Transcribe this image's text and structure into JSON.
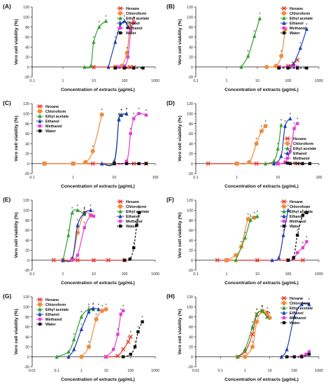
{
  "panel_series_names": [
    "Hexane",
    "Chloroform",
    "Ethyl acetate",
    "Ethanol",
    "Methanol",
    "Water"
  ],
  "series_colors": [
    "#e8392a",
    "#f08c3c",
    "#2fa02c",
    "#1f3bb3",
    "#e23fd6",
    "#111111"
  ],
  "series_markers": [
    "cross",
    "circle",
    "triangle",
    "triangle",
    "square",
    "square"
  ],
  "chart_data": [
    {
      "type": "line",
      "panel": "(A)",
      "xscale": "log",
      "xlim": [
        0.1,
        1000
      ],
      "ylim": [
        -20,
        120
      ],
      "xticks": [
        "0.1",
        "1",
        "10",
        "100",
        "1000"
      ],
      "yticks": [
        "-20",
        "0",
        "20",
        "40",
        "60",
        "80",
        "100",
        "120"
      ],
      "xlabel": "Concentration of extracts (µg/mL)",
      "ylabel": "Vero cell viability (%)",
      "legend": "top-right",
      "series": [
        {
          "name": "Hexane",
          "x": [
            10,
            50,
            100,
            150,
            200
          ],
          "y": [
            0,
            0,
            0,
            0,
            0
          ]
        },
        {
          "name": "Chloroform",
          "x": [
            50,
            80,
            120,
            150,
            200
          ],
          "y": [
            0,
            2,
            28,
            80,
            90
          ]
        },
        {
          "name": "Ethyl acetate",
          "x": [
            5,
            8,
            10,
            15,
            25
          ],
          "y": [
            0,
            2,
            50,
            80,
            92
          ]
        },
        {
          "name": "Ethanol",
          "x": [
            30,
            50,
            70,
            100,
            130
          ],
          "y": [
            0,
            50,
            80,
            92,
            80
          ]
        },
        {
          "name": "Methanol",
          "x": [
            60,
            100,
            130,
            160,
            200
          ],
          "y": [
            0,
            2,
            20,
            72,
            88
          ]
        },
        {
          "name": "Water",
          "x": [
            50,
            100,
            200,
            400
          ],
          "y": [
            -2,
            -2,
            -2,
            -2
          ]
        }
      ]
    },
    {
      "type": "line",
      "panel": "(B)",
      "xscale": "log",
      "xlim": [
        0.1,
        1000
      ],
      "ylim": [
        -20,
        120
      ],
      "xticks": [
        "0.1",
        "1",
        "10",
        "100",
        "1000"
      ],
      "yticks": [
        "-20",
        "0",
        "20",
        "40",
        "60",
        "80",
        "100",
        "120"
      ],
      "xlabel": "Concentration of extracts (µg/mL)",
      "ylabel": "Vero cell viability (%)",
      "legend": "top-right",
      "series": [
        {
          "name": "Hexane",
          "x": [
            50,
            100,
            150,
            200
          ],
          "y": [
            0,
            2,
            7,
            14
          ]
        },
        {
          "name": "Chloroform",
          "x": [
            20,
            40,
            60,
            80
          ],
          "y": [
            0,
            2,
            22,
            75
          ]
        },
        {
          "name": "Ethyl acetate",
          "x": [
            3,
            5,
            8,
            12
          ],
          "y": [
            0,
            22,
            62,
            97
          ]
        },
        {
          "name": "Ethanol",
          "x": [
            100,
            150,
            250,
            400
          ],
          "y": [
            0,
            6,
            38,
            76
          ]
        },
        {
          "name": "Methanol",
          "x": [
            50,
            100,
            150,
            200
          ],
          "y": [
            0,
            0,
            0,
            0
          ]
        },
        {
          "name": "Water",
          "x": [
            50,
            100,
            200,
            400
          ],
          "y": [
            -2,
            -2,
            -2,
            -2
          ]
        }
      ]
    },
    {
      "type": "line",
      "panel": "(C)",
      "xscale": "log",
      "xlim": [
        0.1,
        100
      ],
      "ylim": [
        -20,
        120
      ],
      "xticks": [
        "0.1",
        "1",
        "10",
        "100"
      ],
      "yticks": [
        "-20",
        "0",
        "20",
        "40",
        "60",
        "80",
        "100",
        "120"
      ],
      "xlabel": "Concentration of extracts (µg/mL)",
      "ylabel": "Vero cell viability (%)",
      "legend": "top-left",
      "series": [
        {
          "name": "Hexane",
          "x": [
            0.2,
            1,
            3,
            10,
            30,
            60
          ],
          "y": [
            0,
            0,
            0,
            0,
            0,
            0
          ]
        },
        {
          "name": "Chloroform",
          "x": [
            0.2,
            1,
            2,
            3,
            5
          ],
          "y": [
            0,
            0,
            3,
            25,
            98
          ]
        },
        {
          "name": "Ethyl acetate",
          "x": [
            5,
            10,
            13,
            15,
            20
          ],
          "y": [
            0,
            5,
            90,
            98,
            100
          ]
        },
        {
          "name": "Ethanol",
          "x": [
            5,
            10,
            13,
            15,
            20
          ],
          "y": [
            0,
            3,
            88,
            97,
            100
          ]
        },
        {
          "name": "Methanol",
          "x": [
            10,
            20,
            25,
            30,
            40,
            60
          ],
          "y": [
            0,
            5,
            60,
            90,
            100,
            97
          ]
        },
        {
          "name": "Water",
          "x": [
            10,
            20,
            40,
            60
          ],
          "y": [
            0,
            0,
            0,
            0
          ]
        }
      ]
    },
    {
      "type": "line",
      "panel": "(D)",
      "xscale": "log",
      "xlim": [
        0.1,
        100
      ],
      "ylim": [
        -20,
        120
      ],
      "xticks": [
        "0.1",
        "1",
        "10",
        "100"
      ],
      "yticks": [
        "-20",
        "0",
        "20",
        "40",
        "60",
        "80",
        "100",
        "120"
      ],
      "xlabel": "Concentration of extracts (µg/mL)",
      "ylabel": "Vero cell viability (%)",
      "legend": "bottom-right",
      "series": [
        {
          "name": "Hexane",
          "x": [
            0.2,
            1,
            3,
            10,
            30
          ],
          "y": [
            0,
            0,
            0,
            0,
            0
          ]
        },
        {
          "name": "Chloroform",
          "x": [
            1,
            2,
            3,
            4,
            5
          ],
          "y": [
            0,
            3,
            40,
            65,
            75
          ]
        },
        {
          "name": "Ethyl acetate",
          "x": [
            5,
            8,
            10,
            12
          ],
          "y": [
            0,
            5,
            30,
            77
          ]
        },
        {
          "name": "Ethanol",
          "x": [
            8,
            12,
            15,
            20
          ],
          "y": [
            0,
            15,
            75,
            90
          ]
        },
        {
          "name": "Methanol",
          "x": [
            10,
            15,
            20,
            25,
            30
          ],
          "y": [
            0,
            3,
            25,
            70,
            80
          ]
        },
        {
          "name": "Water",
          "x": [
            20,
            40,
            60
          ],
          "y": [
            0,
            0,
            0
          ]
        }
      ]
    },
    {
      "type": "line",
      "panel": "(E)",
      "xscale": "log",
      "xlim": [
        0.1,
        1000
      ],
      "ylim": [
        -20,
        120
      ],
      "xticks": [
        "0.1",
        "1",
        "10",
        "100",
        "1000"
      ],
      "yticks": [
        "-20",
        "0",
        "20",
        "40",
        "60",
        "80",
        "100",
        "120"
      ],
      "xlabel": "Concentration of extracts (µg/mL)",
      "ylabel": "Vero cell viability (%)",
      "legend": "top-right",
      "series": [
        {
          "name": "Hexane",
          "x": [
            0.5,
            1,
            3,
            10,
            30,
            100
          ],
          "y": [
            0,
            0,
            0,
            0,
            0,
            0
          ]
        },
        {
          "name": "Chloroform",
          "x": [
            1,
            2,
            3,
            5,
            8
          ],
          "y": [
            0,
            3,
            55,
            95,
            90
          ]
        },
        {
          "name": "Ethyl acetate",
          "x": [
            1,
            1.5,
            2,
            3,
            5
          ],
          "y": [
            0,
            50,
            95,
            100,
            92
          ]
        },
        {
          "name": "Ethanol",
          "x": [
            1,
            2,
            3,
            5,
            8
          ],
          "y": [
            0,
            3,
            70,
            95,
            100
          ]
        },
        {
          "name": "Methanol",
          "x": [
            2,
            3,
            5,
            8,
            10
          ],
          "y": [
            0,
            10,
            65,
            90,
            88
          ]
        },
        {
          "name": "Water",
          "x": [
            100,
            150,
            200,
            250,
            300
          ],
          "y": [
            0,
            2,
            25,
            70,
            95
          ]
        }
      ]
    },
    {
      "type": "line",
      "panel": "(F)",
      "xscale": "log",
      "xlim": [
        0.1,
        1000
      ],
      "ylim": [
        -20,
        120
      ],
      "xticks": [
        "0.1",
        "1",
        "10",
        "100",
        "1000"
      ],
      "yticks": [
        "-20",
        "0",
        "20",
        "40",
        "60",
        "80",
        "100",
        "120"
      ],
      "xlabel": "Concentration of extracts (µg/mL)",
      "ylabel": "Vero cell viability (%)",
      "legend": "top-right",
      "series": [
        {
          "name": "Hexane",
          "x": [
            0.5,
            1,
            10,
            100,
            300
          ],
          "y": [
            0,
            0,
            0,
            0,
            0
          ]
        },
        {
          "name": "Chloroform",
          "x": [
            1,
            2,
            3,
            5,
            8
          ],
          "y": [
            0,
            10,
            27,
            82,
            85
          ]
        },
        {
          "name": "Ethyl acetate",
          "x": [
            2,
            4,
            6,
            10
          ],
          "y": [
            0,
            45,
            80,
            88
          ]
        },
        {
          "name": "Ethanol",
          "x": [
            30,
            50,
            70,
            100
          ],
          "y": [
            0,
            5,
            50,
            100
          ]
        },
        {
          "name": "Methanol",
          "x": [
            100,
            150,
            200,
            300,
            400
          ],
          "y": [
            0,
            2,
            15,
            25,
            37
          ]
        },
        {
          "name": "Water",
          "x": [
            100,
            150,
            200,
            300,
            400
          ],
          "y": [
            0,
            5,
            50,
            90,
            95
          ]
        }
      ]
    },
    {
      "type": "line",
      "panel": "(G)",
      "xscale": "log",
      "xlim": [
        0.01,
        1000
      ],
      "ylim": [
        -20,
        120
      ],
      "xticks": [
        "0.01",
        "0.1",
        "1",
        "10",
        "100",
        "1000"
      ],
      "yticks": [
        "-20",
        "0",
        "20",
        "40",
        "60",
        "80",
        "100",
        "120"
      ],
      "xlabel": "Concentration of extracts (µg/mL)",
      "ylabel": "Vero cell viability (%)",
      "legend": "top-left",
      "series": [
        {
          "name": "Hexane",
          "x": [
            10,
            30,
            50,
            80,
            100
          ],
          "y": [
            0,
            2,
            15,
            30,
            40
          ]
        },
        {
          "name": "Chloroform",
          "x": [
            1,
            2,
            4,
            7,
            10
          ],
          "y": [
            0,
            20,
            75,
            92,
            95
          ]
        },
        {
          "name": "Ethyl acetate",
          "x": [
            0.1,
            0.3,
            0.5,
            1,
            2,
            3
          ],
          "y": [
            0,
            10,
            35,
            80,
            95,
            95
          ]
        },
        {
          "name": "Ethanol",
          "x": [
            0.3,
            0.5,
            1,
            2,
            3,
            5
          ],
          "y": [
            0,
            15,
            55,
            90,
            97,
            95
          ]
        },
        {
          "name": "Methanol",
          "x": [
            10,
            20,
            30,
            40,
            50
          ],
          "y": [
            0,
            15,
            45,
            85,
            92
          ]
        },
        {
          "name": "Water",
          "x": [
            50,
            100,
            150,
            200,
            300
          ],
          "y": [
            0,
            5,
            20,
            50,
            70
          ]
        }
      ]
    },
    {
      "type": "line",
      "panel": "(H)",
      "xscale": "log",
      "xlim": [
        0.01,
        1000
      ],
      "ylim": [
        -20,
        120
      ],
      "xticks": [
        "0.01",
        "0.1",
        "1",
        "10",
        "100",
        "1000"
      ],
      "yticks": [
        "-20",
        "0",
        "20",
        "40",
        "60",
        "80",
        "100",
        "120"
      ],
      "xlabel": "Concentration of extracts (µg/mL)",
      "ylabel": "Vero cell viability (%)",
      "legend": "top-right",
      "series": [
        {
          "name": "Hexane",
          "x": [
            0.5,
            1,
            2,
            3,
            5,
            8
          ],
          "y": [
            0,
            10,
            45,
            85,
            90,
            80
          ]
        },
        {
          "name": "Chloroform",
          "x": [
            1,
            2,
            3,
            5,
            8,
            10
          ],
          "y": [
            0,
            20,
            70,
            92,
            88,
            78
          ]
        },
        {
          "name": "Ethyl acetate",
          "x": [
            0.5,
            1,
            2,
            3,
            5,
            8
          ],
          "y": [
            0,
            15,
            60,
            85,
            92,
            80
          ]
        },
        {
          "name": "Ethanol",
          "x": [
            30,
            50,
            100,
            200,
            400
          ],
          "y": [
            0,
            15,
            80,
            105,
            105
          ]
        },
        {
          "name": "Methanol",
          "x": [
            50,
            100,
            200,
            300,
            400
          ],
          "y": [
            0,
            0,
            2,
            5,
            10
          ]
        },
        {
          "name": "Water",
          "x": [
            50,
            100,
            200,
            400
          ],
          "y": [
            0,
            0,
            0,
            5
          ]
        }
      ]
    }
  ]
}
